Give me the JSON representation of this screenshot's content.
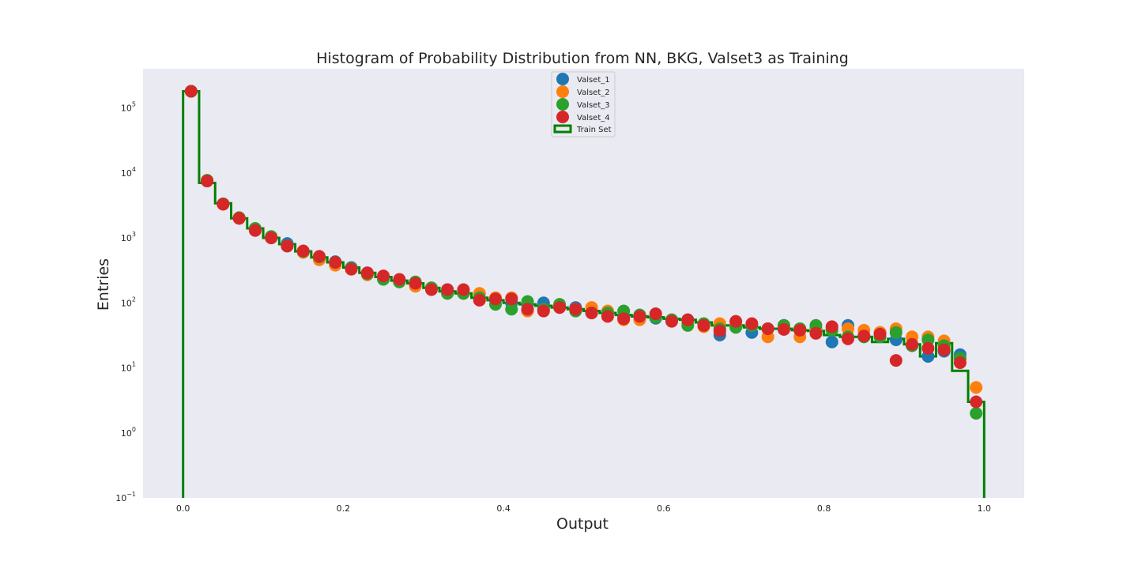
{
  "chart_data": {
    "type": "scatter",
    "title": "Histogram of Probability Distribution from NN, BKG, Valset3 as Training",
    "xlabel": "Output",
    "ylabel": "Entries",
    "xlim": [
      -0.05,
      1.05
    ],
    "ylim": [
      0.1,
      400000
    ],
    "yscale": "log",
    "grid": false,
    "background_color": "#eaeaf2",
    "legend_position": "top-center",
    "x_ticks": [
      "0.0",
      "0.2",
      "0.4",
      "0.6",
      "0.8",
      "1.0"
    ],
    "x_tick_values": [
      0.0,
      0.2,
      0.4,
      0.6,
      0.8,
      1.0
    ],
    "y_ticks": [
      {
        "base": "10",
        "exp": "−1",
        "value": 0.1
      },
      {
        "base": "10",
        "exp": "0",
        "value": 1
      },
      {
        "base": "10",
        "exp": "1",
        "value": 10
      },
      {
        "base": "10",
        "exp": "2",
        "value": 100
      },
      {
        "base": "10",
        "exp": "3",
        "value": 1000
      },
      {
        "base": "10",
        "exp": "4",
        "value": 10000
      },
      {
        "base": "10",
        "exp": "5",
        "value": 100000
      }
    ],
    "x": [
      0.01,
      0.03,
      0.05,
      0.07,
      0.09,
      0.11,
      0.13,
      0.15,
      0.17,
      0.19,
      0.21,
      0.23,
      0.25,
      0.27,
      0.29,
      0.31,
      0.33,
      0.35,
      0.37,
      0.39,
      0.41,
      0.43,
      0.45,
      0.47,
      0.49,
      0.51,
      0.53,
      0.55,
      0.57,
      0.59,
      0.61,
      0.63,
      0.65,
      0.67,
      0.69,
      0.71,
      0.73,
      0.75,
      0.77,
      0.79,
      0.81,
      0.83,
      0.85,
      0.87,
      0.89,
      0.91,
      0.93,
      0.95,
      0.97,
      0.99
    ],
    "series": [
      {
        "name": "Valset_1",
        "color": "#1f77b4",
        "values": [
          180000,
          7600,
          3300,
          2000,
          1350,
          1000,
          820,
          600,
          500,
          430,
          350,
          290,
          240,
          220,
          200,
          170,
          160,
          140,
          120,
          110,
          100,
          95,
          100,
          90,
          85,
          75,
          70,
          60,
          65,
          58,
          55,
          55,
          45,
          32,
          45,
          35,
          40,
          45,
          40,
          40,
          25,
          45,
          30,
          35,
          27,
          22,
          15,
          18,
          16,
          null
        ]
      },
      {
        "name": "Valset_2",
        "color": "#ff7f0e",
        "values": [
          180000,
          7500,
          3300,
          2000,
          1300,
          1000,
          750,
          600,
          460,
          380,
          330,
          270,
          250,
          210,
          180,
          170,
          140,
          140,
          140,
          120,
          120,
          75,
          80,
          85,
          80,
          85,
          75,
          55,
          55,
          65,
          55,
          50,
          43,
          48,
          45,
          45,
          30,
          40,
          30,
          38,
          40,
          40,
          38,
          35,
          40,
          30,
          30,
          26,
          14,
          5
        ]
      },
      {
        "name": "Valset_3",
        "color": "#2ca02c",
        "values": [
          180000,
          7700,
          3350,
          2050,
          1400,
          1050,
          750,
          620,
          510,
          420,
          340,
          280,
          230,
          210,
          210,
          170,
          140,
          140,
          120,
          95,
          80,
          105,
          80,
          95,
          75,
          70,
          70,
          75,
          65,
          60,
          55,
          45,
          48,
          40,
          42,
          45,
          40,
          45,
          40,
          45,
          38,
          30,
          30,
          30,
          35,
          22,
          27,
          22,
          14,
          2
        ]
      },
      {
        "name": "Valset_4",
        "color": "#d62728",
        "values": [
          180000,
          7500,
          3300,
          2000,
          1300,
          1000,
          750,
          630,
          520,
          420,
          330,
          290,
          260,
          230,
          200,
          160,
          160,
          160,
          110,
          115,
          115,
          80,
          75,
          85,
          80,
          70,
          62,
          57,
          62,
          68,
          52,
          55,
          45,
          37,
          52,
          48,
          40,
          39,
          38,
          34,
          43,
          28,
          31,
          33,
          13,
          23,
          20,
          19,
          12,
          3
        ]
      }
    ],
    "train_set": {
      "name": "Train Set",
      "color": "#008000",
      "bin_edges": [
        0.0,
        0.02,
        0.04,
        0.06,
        0.08,
        0.1,
        0.12,
        0.14,
        0.16,
        0.18,
        0.2,
        0.22,
        0.24,
        0.26,
        0.28,
        0.3,
        0.32,
        0.34,
        0.36,
        0.38,
        0.4,
        0.42,
        0.44,
        0.46,
        0.48,
        0.5,
        0.52,
        0.54,
        0.56,
        0.58,
        0.6,
        0.62,
        0.64,
        0.66,
        0.68,
        0.7,
        0.72,
        0.74,
        0.76,
        0.78,
        0.8,
        0.82,
        0.84,
        0.86,
        0.88,
        0.9,
        0.92,
        0.94,
        0.96,
        0.98,
        1.0
      ],
      "values": [
        180000,
        7000,
        3400,
        2000,
        1400,
        1000,
        800,
        620,
        500,
        420,
        350,
        290,
        250,
        220,
        200,
        170,
        150,
        140,
        120,
        110,
        100,
        95,
        90,
        85,
        80,
        75,
        70,
        65,
        62,
        60,
        57,
        55,
        50,
        45,
        45,
        42,
        40,
        40,
        38,
        37,
        32,
        30,
        30,
        25,
        28,
        23,
        15,
        24,
        9,
        3
      ]
    }
  }
}
